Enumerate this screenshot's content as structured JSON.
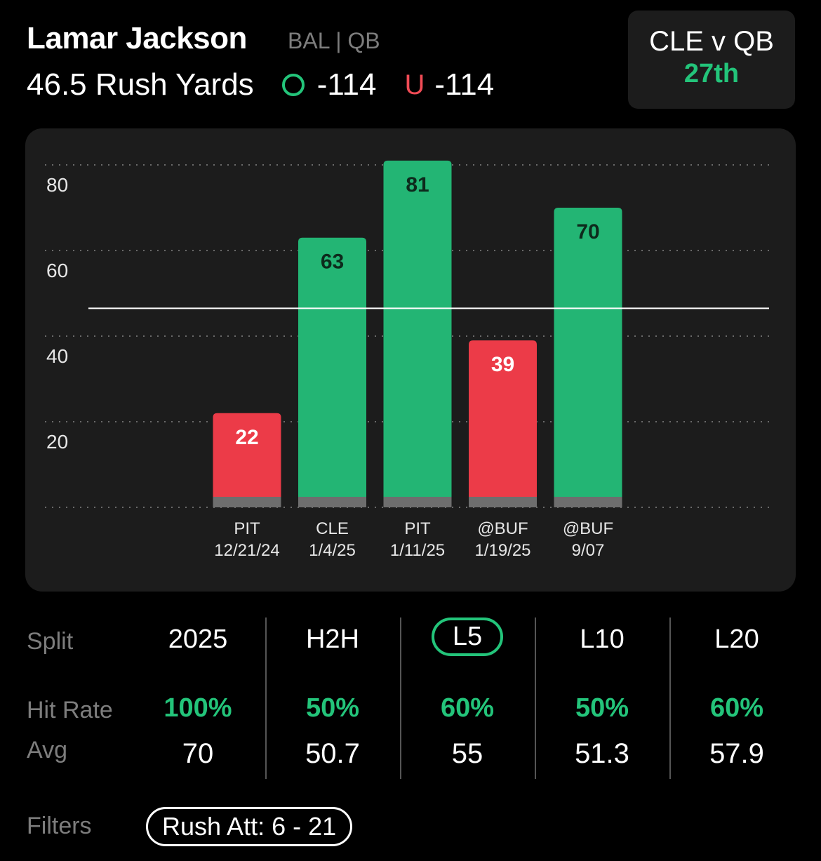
{
  "header": {
    "player_name": "Lamar Jackson",
    "team_position": "BAL | QB",
    "prop_line": "46.5 Rush Yards",
    "over_odds": "-114",
    "under_mark": "U",
    "under_odds": "-114"
  },
  "matchup": {
    "label": "CLE v QB",
    "rank": "27th"
  },
  "chart_data": {
    "type": "bar",
    "categories": [
      "PIT\n12/21/24",
      "CLE\n1/4/25",
      "PIT\n1/11/25",
      "@BUF\n1/19/25",
      "@BUF\n9/07"
    ],
    "values": [
      22,
      63,
      81,
      39,
      70
    ],
    "line_value": 46.5,
    "ylim": [
      0,
      80
    ],
    "yticks": [
      20,
      40,
      60,
      80
    ],
    "grid": true,
    "colors": {
      "over": "#23b574",
      "under": "#ec3b48",
      "base": "#6e6e6e"
    }
  },
  "stats": {
    "split_label": "Split",
    "hit_rate_label": "Hit Rate",
    "avg_label": "Avg",
    "columns": [
      {
        "split": "2025",
        "hit_rate": "100%",
        "avg": "70",
        "selected": false
      },
      {
        "split": "H2H",
        "hit_rate": "50%",
        "avg": "50.7",
        "selected": false
      },
      {
        "split": "L5",
        "hit_rate": "60%",
        "avg": "55",
        "selected": true
      },
      {
        "split": "L10",
        "hit_rate": "50%",
        "avg": "51.3",
        "selected": false
      },
      {
        "split": "L20",
        "hit_rate": "60%",
        "avg": "57.9",
        "selected": false
      }
    ]
  },
  "filters": {
    "label": "Filters",
    "rush_att": "Rush Att: 6 - 21"
  }
}
